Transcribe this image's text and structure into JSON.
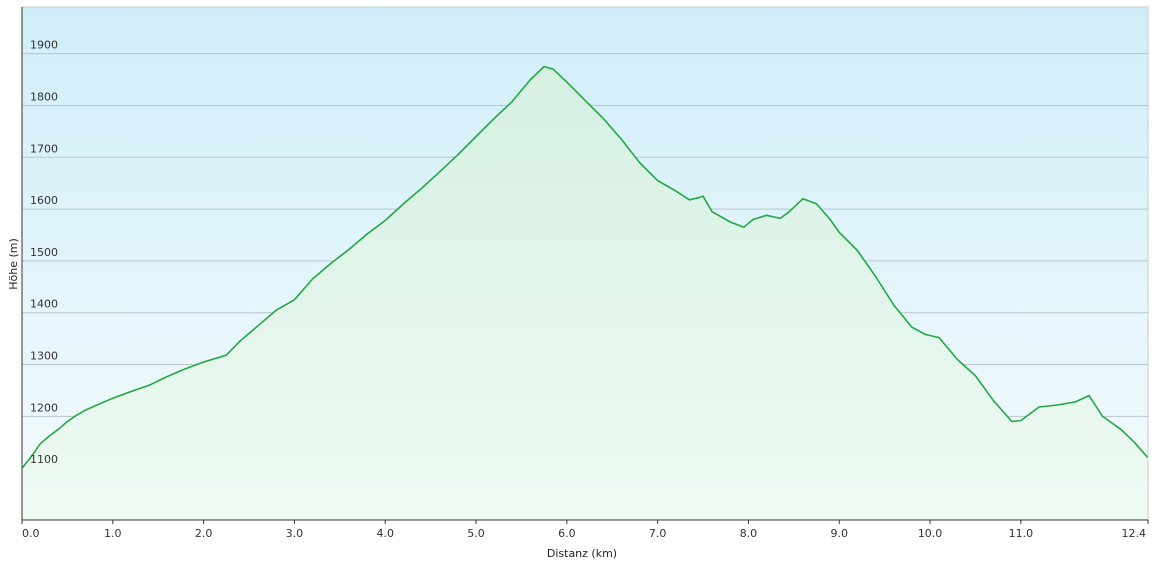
{
  "chart_data": {
    "type": "area",
    "title": "",
    "xlabel": "Distanz  (km)",
    "ylabel": "Höhe (m)",
    "xlim": [
      0,
      12.4
    ],
    "ylim": [
      1000,
      1990
    ],
    "x_ticks": [
      "0.0",
      "1.0",
      "2.0",
      "3.0",
      "4.0",
      "5.0",
      "6.0",
      "7.0",
      "8.0",
      "9.0",
      "10.0",
      "11.0",
      "12.4"
    ],
    "x_tick_values": [
      0,
      1,
      2,
      3,
      4,
      5,
      6,
      7,
      8,
      9,
      10,
      11,
      12.4
    ],
    "y_ticks": [
      "1100",
      "1200",
      "1300",
      "1400",
      "1500",
      "1600",
      "1700",
      "1800",
      "1900"
    ],
    "y_tick_values": [
      1100,
      1200,
      1300,
      1400,
      1500,
      1600,
      1700,
      1800,
      1900
    ],
    "grid": true,
    "series": [
      {
        "color": "#22a844",
        "fill_color": "#e2f6ea",
        "x": [
          0.0,
          0.1,
          0.2,
          0.3,
          0.4,
          0.5,
          0.6,
          0.7,
          0.8,
          1.0,
          1.2,
          1.4,
          1.6,
          1.8,
          2.0,
          2.25,
          2.4,
          2.6,
          2.8,
          3.0,
          3.2,
          3.4,
          3.6,
          3.8,
          4.0,
          4.2,
          4.4,
          4.6,
          4.8,
          5.0,
          5.2,
          5.4,
          5.6,
          5.75,
          5.85,
          6.0,
          6.2,
          6.4,
          6.6,
          6.8,
          7.0,
          7.2,
          7.35,
          7.45,
          7.5,
          7.6,
          7.8,
          7.95,
          8.05,
          8.2,
          8.35,
          8.45,
          8.6,
          8.75,
          8.9,
          9.0,
          9.2,
          9.4,
          9.6,
          9.8,
          9.95,
          10.1,
          10.3,
          10.5,
          10.7,
          10.9,
          11.0,
          11.2,
          11.4,
          11.6,
          11.75,
          11.9,
          12.1,
          12.25,
          12.4
        ],
        "y": [
          1100,
          1122,
          1147,
          1162,
          1175,
          1190,
          1202,
          1212,
          1220,
          1235,
          1248,
          1260,
          1277,
          1292,
          1305,
          1318,
          1345,
          1375,
          1405,
          1425,
          1465,
          1495,
          1522,
          1552,
          1578,
          1610,
          1640,
          1672,
          1705,
          1740,
          1775,
          1808,
          1850,
          1875,
          1870,
          1845,
          1810,
          1775,
          1735,
          1690,
          1655,
          1635,
          1618,
          1622,
          1625,
          1595,
          1575,
          1565,
          1580,
          1588,
          1582,
          1595,
          1620,
          1610,
          1580,
          1555,
          1520,
          1470,
          1415,
          1372,
          1358,
          1352,
          1310,
          1278,
          1230,
          1190,
          1192,
          1218,
          1222,
          1228,
          1240,
          1200,
          1175,
          1150,
          1120
        ]
      }
    ]
  }
}
